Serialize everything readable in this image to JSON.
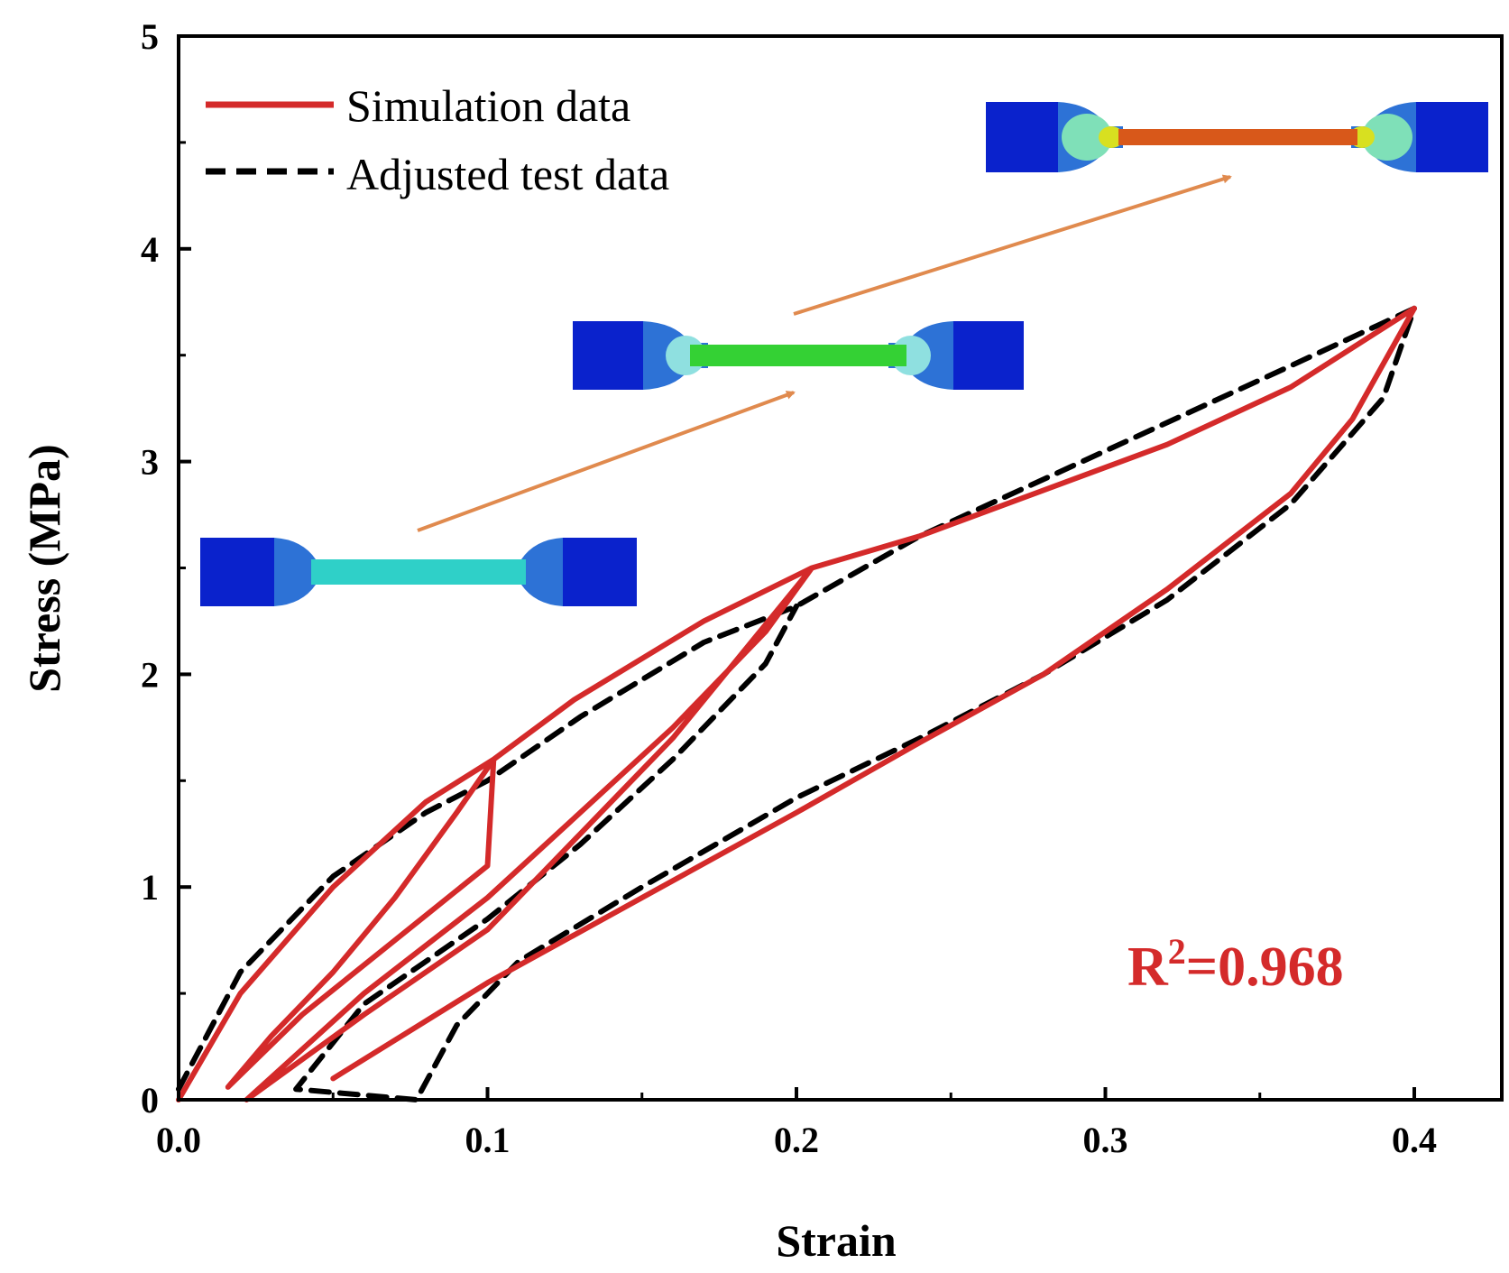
{
  "chart_data": {
    "type": "line",
    "title": "",
    "xlabel": "Strain",
    "ylabel": "Stress (MPa)",
    "xlim": [
      0.0,
      0.425
    ],
    "ylim": [
      0,
      5
    ],
    "x_ticks": [
      0.0,
      0.1,
      0.2,
      0.3,
      0.4
    ],
    "x_tick_labels": [
      "0.0",
      "0.1",
      "0.2",
      "0.3",
      "0.4"
    ],
    "y_ticks": [
      0,
      1,
      2,
      3,
      4,
      5
    ],
    "y_tick_labels": [
      "0",
      "1",
      "2",
      "3",
      "4",
      "5"
    ],
    "grid": false,
    "legend_position": "top-left",
    "colors": {
      "simulation": "#d42a2a",
      "test": "#000000",
      "arrow": "#e08a4e",
      "annotation": "#d42a2a"
    },
    "series": [
      {
        "name": "Simulation data",
        "style": "solid",
        "points": [
          [
            0.0,
            0.0
          ],
          [
            0.02,
            0.5
          ],
          [
            0.05,
            1.0
          ],
          [
            0.08,
            1.4
          ],
          [
            0.102,
            1.6
          ],
          [
            0.09,
            1.35
          ],
          [
            0.07,
            0.95
          ],
          [
            0.05,
            0.6
          ],
          [
            0.03,
            0.3
          ],
          [
            0.016,
            0.06
          ],
          [
            0.04,
            0.4
          ],
          [
            0.07,
            0.75
          ],
          [
            0.1,
            1.1
          ],
          [
            0.102,
            1.6
          ],
          [
            0.128,
            1.88
          ],
          [
            0.17,
            2.25
          ],
          [
            0.205,
            2.5
          ],
          [
            0.19,
            2.2
          ],
          [
            0.16,
            1.75
          ],
          [
            0.13,
            1.35
          ],
          [
            0.1,
            0.95
          ],
          [
            0.06,
            0.5
          ],
          [
            0.022,
            0.0
          ],
          [
            0.06,
            0.4
          ],
          [
            0.1,
            0.8
          ],
          [
            0.13,
            1.25
          ],
          [
            0.16,
            1.7
          ],
          [
            0.205,
            2.5
          ],
          [
            0.24,
            2.65
          ],
          [
            0.32,
            3.08
          ],
          [
            0.36,
            3.35
          ],
          [
            0.4,
            3.72
          ],
          [
            0.38,
            3.2
          ],
          [
            0.36,
            2.85
          ],
          [
            0.32,
            2.4
          ],
          [
            0.28,
            2.0
          ],
          [
            0.24,
            1.68
          ],
          [
            0.2,
            1.35
          ],
          [
            0.15,
            0.95
          ],
          [
            0.1,
            0.55
          ],
          [
            0.05,
            0.1
          ]
        ]
      },
      {
        "name": "Adjusted test data",
        "style": "dashed",
        "points": [
          [
            0.0,
            0.05
          ],
          [
            0.02,
            0.6
          ],
          [
            0.05,
            1.05
          ],
          [
            0.08,
            1.35
          ],
          [
            0.1,
            1.5
          ],
          [
            0.13,
            1.8
          ],
          [
            0.17,
            2.15
          ],
          [
            0.2,
            2.32
          ],
          [
            0.24,
            2.65
          ],
          [
            0.3,
            3.05
          ],
          [
            0.36,
            3.45
          ],
          [
            0.4,
            3.72
          ],
          [
            0.39,
            3.3
          ],
          [
            0.36,
            2.8
          ],
          [
            0.32,
            2.35
          ],
          [
            0.28,
            2.0
          ],
          [
            0.24,
            1.7
          ],
          [
            0.2,
            1.42
          ],
          [
            0.15,
            1.0
          ],
          [
            0.11,
            0.65
          ],
          [
            0.09,
            0.35
          ],
          [
            0.077,
            0.0
          ],
          [
            0.038,
            0.05
          ],
          [
            0.06,
            0.45
          ],
          [
            0.1,
            0.85
          ],
          [
            0.13,
            1.2
          ],
          [
            0.16,
            1.6
          ],
          [
            0.19,
            2.05
          ],
          [
            0.2,
            2.32
          ]
        ]
      }
    ],
    "annotations": {
      "r2_prefix": "R",
      "r2_superscript": "2",
      "r2_value": "=0.968"
    }
  },
  "legend": {
    "simulation_label": "Simulation data",
    "test_label": "Adjusted test data"
  }
}
